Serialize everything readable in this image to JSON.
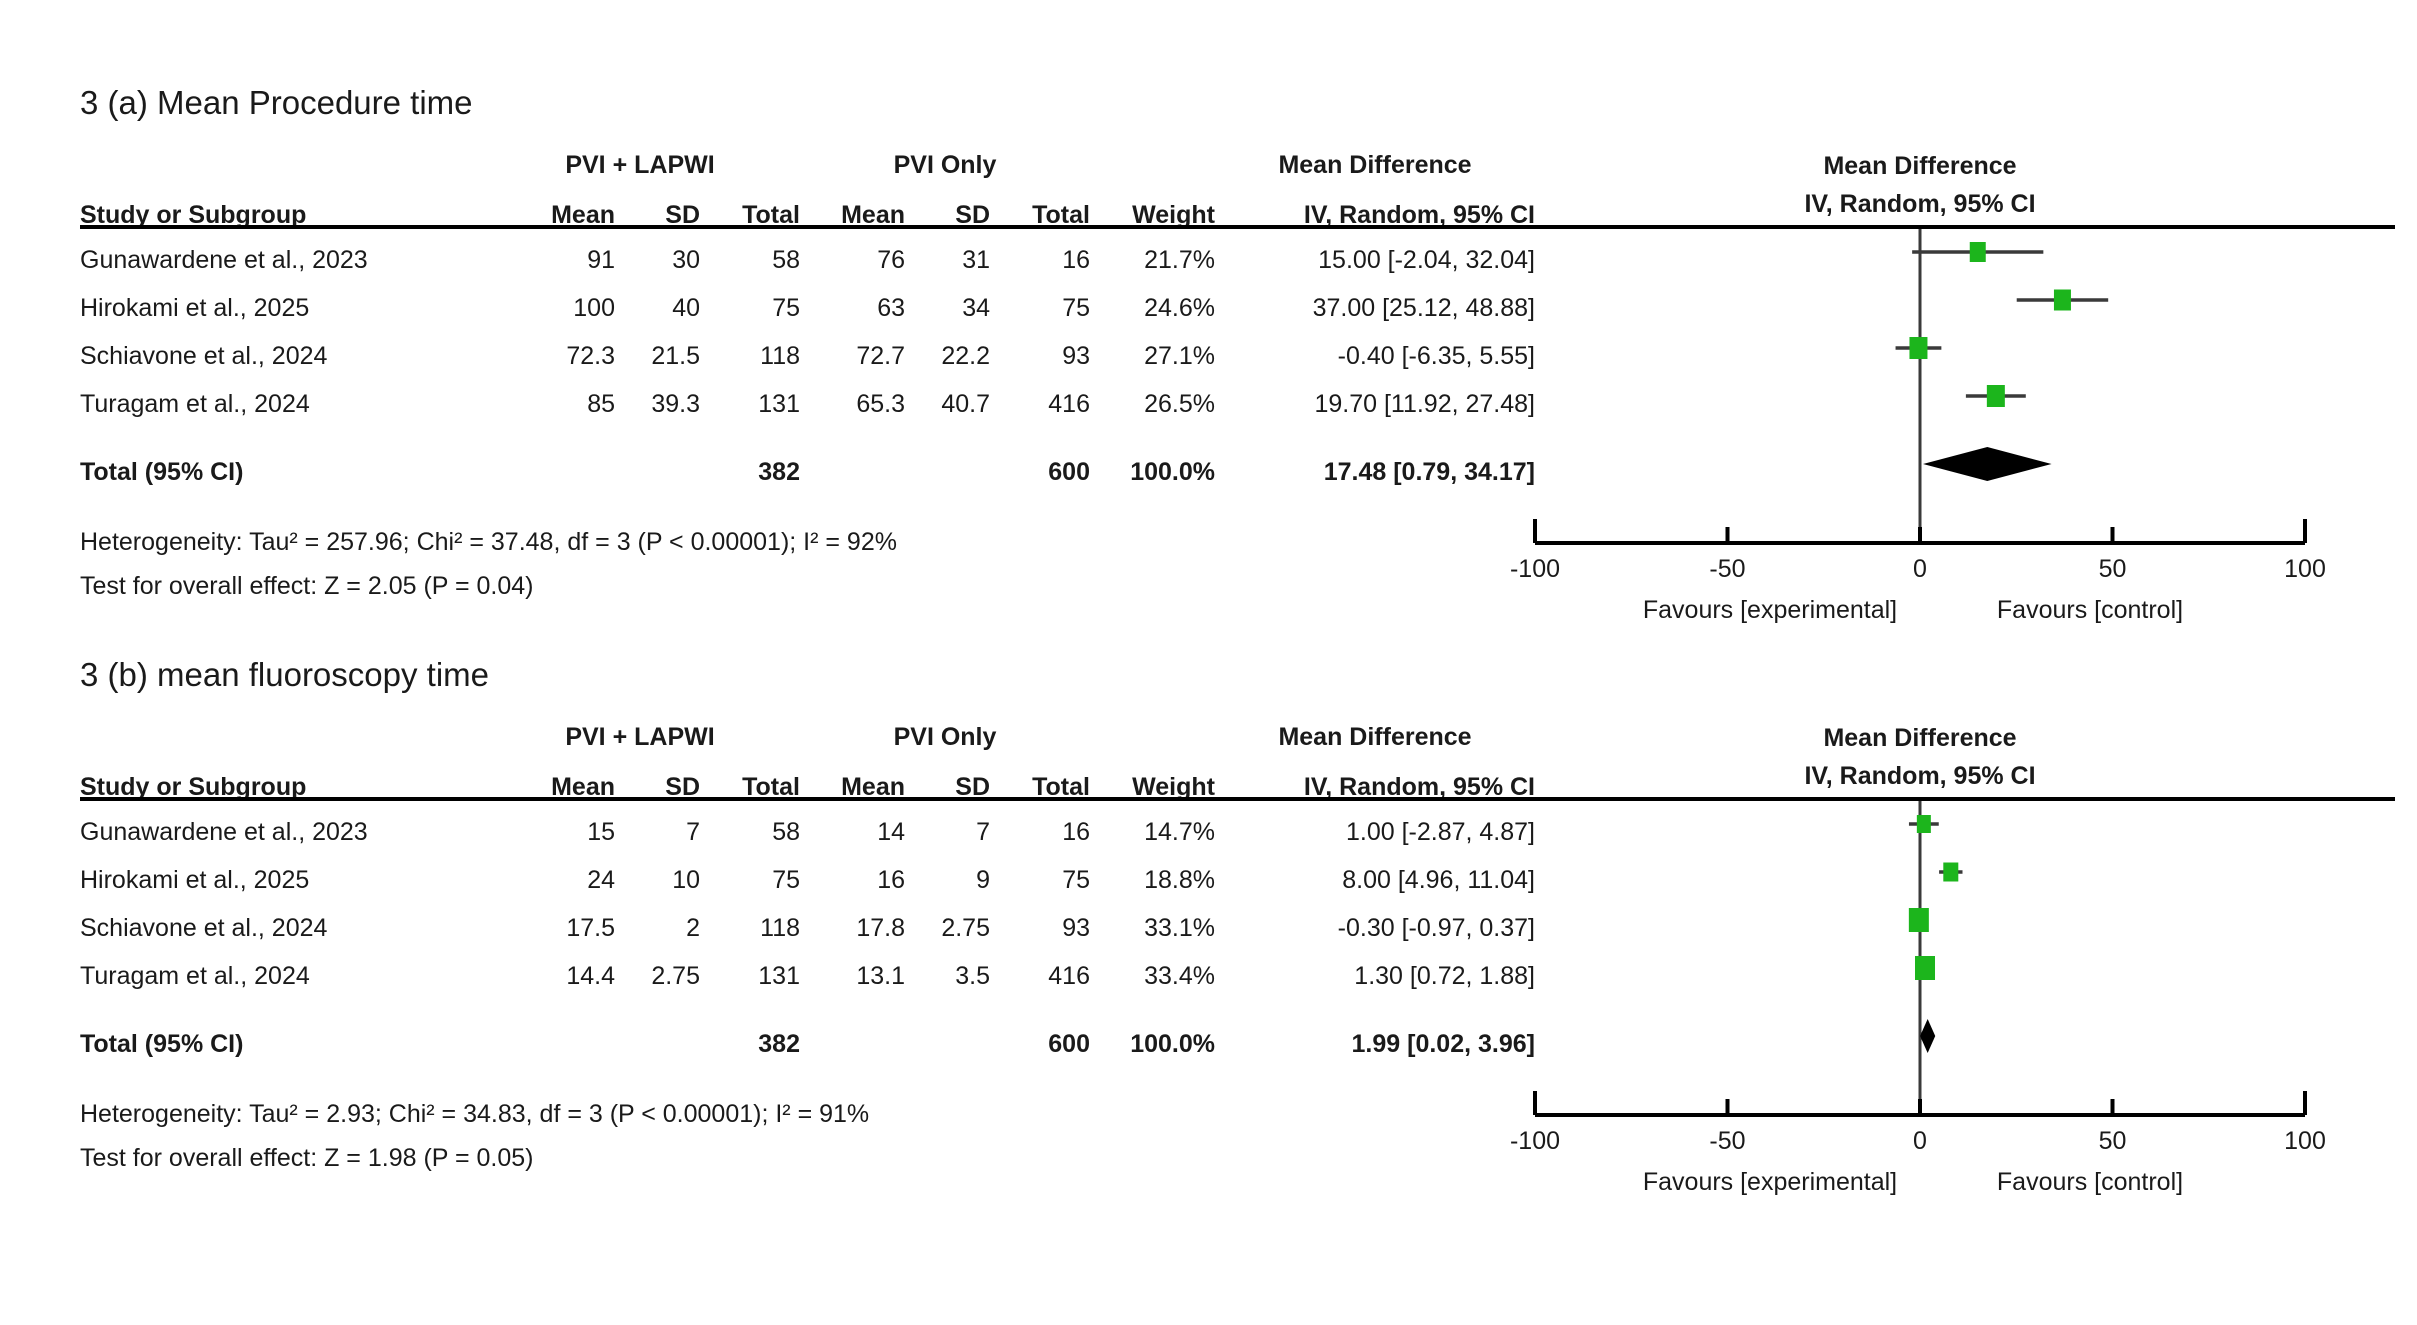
{
  "colors": {
    "marker_green": "#1CB51C",
    "ci_line_gray": "#3a3a3a",
    "axis_black": "#000000",
    "text": "#1a1a1a"
  },
  "chart_data": [
    {
      "type": "forest",
      "panel_label": "3 (a) Mean Procedure time",
      "group1_header": "PVI + LAPWI",
      "group2_header": "PVI Only",
      "effect_header": "Mean Difference",
      "effect_subheader": "IV, Random, 95% CI",
      "columns": {
        "study": "Study or Subgroup",
        "mean": "Mean",
        "sd": "SD",
        "total": "Total",
        "weight": "Weight"
      },
      "studies": [
        {
          "name": "Gunawardene et al., 2023",
          "mean_e": "91",
          "sd_e": "30",
          "total_e": "58",
          "mean_c": "76",
          "sd_c": "31",
          "total_c": "16",
          "weight": "21.7%",
          "weight_pct": 21.7,
          "md_text": "15.00 [-2.04, 32.04]",
          "md": 15.0,
          "ci_low": -2.04,
          "ci_high": 32.04
        },
        {
          "name": "Hirokami et al., 2025",
          "mean_e": "100",
          "sd_e": "40",
          "total_e": "75",
          "mean_c": "63",
          "sd_c": "34",
          "total_c": "75",
          "weight": "24.6%",
          "weight_pct": 24.6,
          "md_text": "37.00 [25.12, 48.88]",
          "md": 37.0,
          "ci_low": 25.12,
          "ci_high": 48.88
        },
        {
          "name": "Schiavone et al., 2024",
          "mean_e": "72.3",
          "sd_e": "21.5",
          "total_e": "118",
          "mean_c": "72.7",
          "sd_c": "22.2",
          "total_c": "93",
          "weight": "27.1%",
          "weight_pct": 27.1,
          "md_text": "-0.40 [-6.35, 5.55]",
          "md": -0.4,
          "ci_low": -6.35,
          "ci_high": 5.55
        },
        {
          "name": "Turagam et al., 2024",
          "mean_e": "85",
          "sd_e": "39.3",
          "total_e": "131",
          "mean_c": "65.3",
          "sd_c": "40.7",
          "total_c": "416",
          "weight": "26.5%",
          "weight_pct": 26.5,
          "md_text": "19.70 [11.92, 27.48]",
          "md": 19.7,
          "ci_low": 11.92,
          "ci_high": 27.48
        }
      ],
      "total": {
        "label": "Total (95% CI)",
        "total_e": "382",
        "total_c": "600",
        "weight": "100.0%",
        "md_text": "17.48 [0.79, 34.17]",
        "md": 17.48,
        "ci_low": 0.79,
        "ci_high": 34.17
      },
      "heterogeneity": "Heterogeneity: Tau² = 257.96; Chi² = 37.48, df = 3 (P < 0.00001); I² = 92%",
      "overall_effect": "Test for overall effect: Z = 2.05 (P = 0.04)",
      "axis": {
        "min": -100,
        "max": 100,
        "tick_values": [
          -100,
          -50,
          0,
          50,
          100
        ],
        "tick_labels": [
          "-100",
          "-50",
          "0",
          "50",
          "100"
        ]
      },
      "favours_left": "Favours [experimental]",
      "favours_right": "Favours [control]"
    },
    {
      "type": "forest",
      "panel_label": "3 (b) mean fluoroscopy time",
      "group1_header": "PVI + LAPWI",
      "group2_header": "PVI Only",
      "effect_header": "Mean Difference",
      "effect_subheader": "IV, Random, 95% CI",
      "columns": {
        "study": "Study or Subgroup",
        "mean": "Mean",
        "sd": "SD",
        "total": "Total",
        "weight": "Weight"
      },
      "studies": [
        {
          "name": "Gunawardene et al., 2023",
          "mean_e": "15",
          "sd_e": "7",
          "total_e": "58",
          "mean_c": "14",
          "sd_c": "7",
          "total_c": "16",
          "weight": "14.7%",
          "weight_pct": 14.7,
          "md_text": "1.00 [-2.87, 4.87]",
          "md": 1.0,
          "ci_low": -2.87,
          "ci_high": 4.87
        },
        {
          "name": "Hirokami et al., 2025",
          "mean_e": "24",
          "sd_e": "10",
          "total_e": "75",
          "mean_c": "16",
          "sd_c": "9",
          "total_c": "75",
          "weight": "18.8%",
          "weight_pct": 18.8,
          "md_text": "8.00 [4.96, 11.04]",
          "md": 8.0,
          "ci_low": 4.96,
          "ci_high": 11.04
        },
        {
          "name": "Schiavone et al., 2024",
          "mean_e": "17.5",
          "sd_e": "2",
          "total_e": "118",
          "mean_c": "17.8",
          "sd_c": "2.75",
          "total_c": "93",
          "weight": "33.1%",
          "weight_pct": 33.1,
          "md_text": "-0.30 [-0.97, 0.37]",
          "md": -0.3,
          "ci_low": -0.97,
          "ci_high": 0.37
        },
        {
          "name": "Turagam et al., 2024",
          "mean_e": "14.4",
          "sd_e": "2.75",
          "total_e": "131",
          "mean_c": "13.1",
          "sd_c": "3.5",
          "total_c": "416",
          "weight": "33.4%",
          "weight_pct": 33.4,
          "md_text": "1.30 [0.72, 1.88]",
          "md": 1.3,
          "ci_low": 0.72,
          "ci_high": 1.88
        }
      ],
      "total": {
        "label": "Total (95% CI)",
        "total_e": "382",
        "total_c": "600",
        "weight": "100.0%",
        "md_text": "1.99 [0.02, 3.96]",
        "md": 1.99,
        "ci_low": 0.02,
        "ci_high": 3.96
      },
      "heterogeneity": "Heterogeneity: Tau² = 2.93; Chi² = 34.83, df = 3 (P < 0.00001); I² = 91%",
      "overall_effect": "Test for overall effect: Z = 1.98 (P = 0.05)",
      "axis": {
        "min": -100,
        "max": 100,
        "tick_values": [
          -100,
          -50,
          0,
          50,
          100
        ],
        "tick_labels": [
          "-100",
          "-50",
          "0",
          "50",
          "100"
        ]
      },
      "favours_left": "Favours [experimental]",
      "favours_right": "Favours [control]"
    }
  ]
}
